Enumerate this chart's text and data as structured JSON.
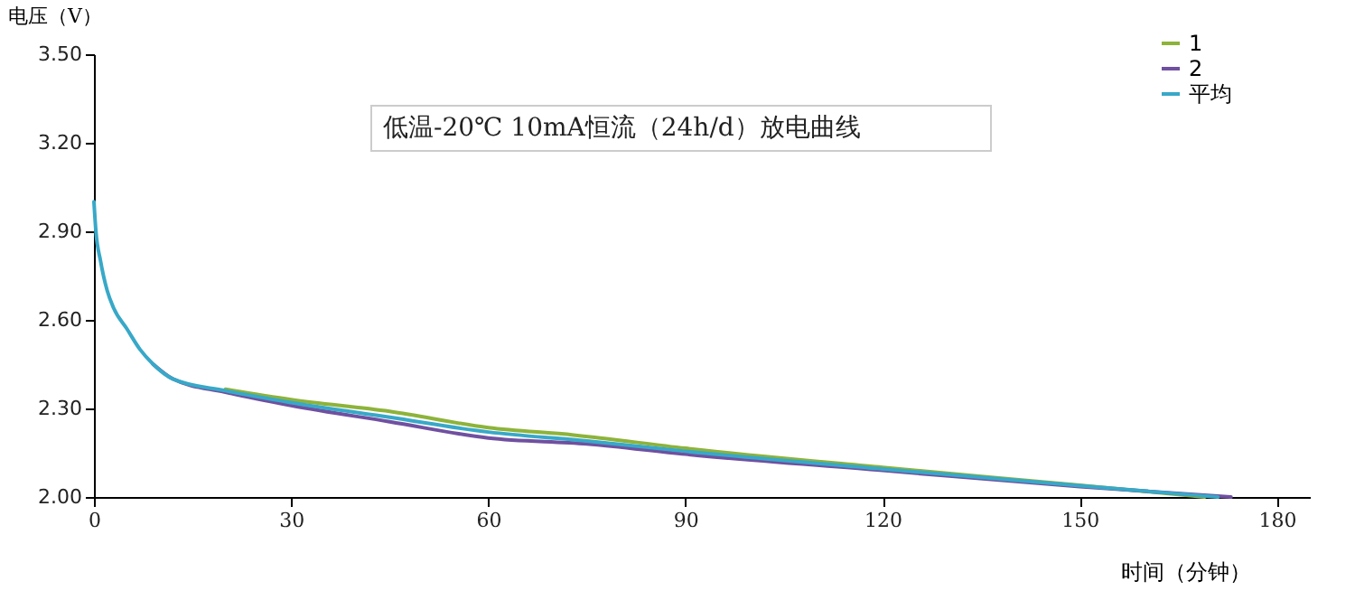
{
  "chart_data": {
    "type": "line",
    "title": "低温-20℃ 10mA恒流（24h/d）放电曲线",
    "xlabel": "时间（分钟）",
    "ylabel": "电压（V）",
    "xlim": [
      0,
      185
    ],
    "xticks": [
      0,
      30,
      60,
      90,
      120,
      150,
      180
    ],
    "ylim": [
      2.0,
      3.5
    ],
    "yticks": [
      {
        "value": 2.0,
        "label": "2.00"
      },
      {
        "value": 2.3,
        "label": "2.30"
      },
      {
        "value": 2.6,
        "label": "2.60"
      },
      {
        "value": 2.9,
        "label": "2.90"
      },
      {
        "value": 3.2,
        "label": "3.20"
      },
      {
        "value": 3.5,
        "label": "3.50"
      }
    ],
    "grid": false,
    "legend": "top right",
    "series": [
      {
        "name": "1",
        "color": "#8db33a",
        "x": [
          20,
          30,
          45,
          60,
          73,
          90,
          120,
          150,
          169
        ],
        "values": [
          2.365,
          2.33,
          2.29,
          2.235,
          2.21,
          2.165,
          2.1,
          2.04,
          2.0
        ]
      },
      {
        "name": "2",
        "color": "#7050a0",
        "x": [
          9,
          12,
          20,
          30,
          45,
          60,
          75,
          90,
          120,
          150,
          173
        ],
        "values": [
          2.45,
          2.4,
          2.355,
          2.31,
          2.255,
          2.2,
          2.18,
          2.145,
          2.09,
          2.035,
          2.0
        ]
      },
      {
        "name": "平均",
        "color": "#38a8c8",
        "x": [
          0,
          0.3,
          1,
          2,
          3,
          5,
          7,
          9,
          12,
          20,
          30,
          45,
          60,
          75,
          90,
          120,
          150,
          171
        ],
        "values": [
          3.0,
          2.9,
          2.8,
          2.7,
          2.64,
          2.57,
          2.5,
          2.45,
          2.4,
          2.36,
          2.32,
          2.27,
          2.22,
          2.19,
          2.155,
          2.095,
          2.038,
          2.0
        ]
      }
    ]
  }
}
